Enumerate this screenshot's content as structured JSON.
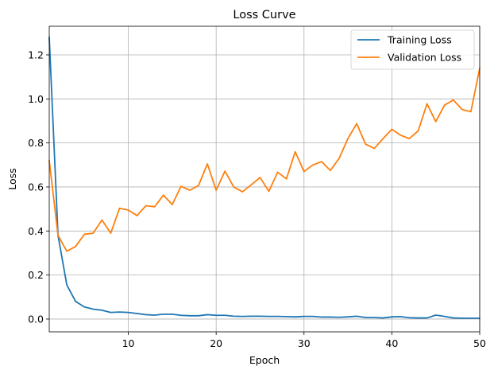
{
  "chart_data": {
    "type": "line",
    "title": "Loss Curve",
    "xlabel": "Epoch",
    "ylabel": "Loss",
    "xlim": [
      1,
      50
    ],
    "ylim": [
      -0.058,
      1.33
    ],
    "xticks": [
      10,
      20,
      30,
      40,
      50
    ],
    "yticks": [
      0.0,
      0.2,
      0.4,
      0.6,
      0.8,
      1.0,
      1.2
    ],
    "ytick_labels": [
      "0.0",
      "0.2",
      "0.4",
      "0.6",
      "0.8",
      "1.0",
      "1.2"
    ],
    "grid": true,
    "legend_position": "top-right",
    "x": [
      1,
      2,
      3,
      4,
      5,
      6,
      7,
      8,
      9,
      10,
      11,
      12,
      13,
      14,
      15,
      16,
      17,
      18,
      19,
      20,
      21,
      22,
      23,
      24,
      25,
      26,
      27,
      28,
      29,
      30,
      31,
      32,
      33,
      34,
      35,
      36,
      37,
      38,
      39,
      40,
      41,
      42,
      43,
      44,
      45,
      46,
      47,
      48,
      49,
      50
    ],
    "series": [
      {
        "name": "Training Loss",
        "color": "#1f77b4",
        "values": [
          1.28,
          0.38,
          0.155,
          0.08,
          0.055,
          0.045,
          0.04,
          0.03,
          0.032,
          0.03,
          0.025,
          0.02,
          0.018,
          0.022,
          0.022,
          0.017,
          0.015,
          0.015,
          0.02,
          0.017,
          0.017,
          0.013,
          0.012,
          0.013,
          0.013,
          0.012,
          0.012,
          0.011,
          0.01,
          0.012,
          0.012,
          0.009,
          0.009,
          0.008,
          0.01,
          0.013,
          0.007,
          0.007,
          0.005,
          0.01,
          0.011,
          0.006,
          0.005,
          0.005,
          0.018,
          0.012,
          0.005,
          0.004,
          0.004,
          0.004
        ]
      },
      {
        "name": "Validation Loss",
        "color": "#ff7f0e",
        "values": [
          0.72,
          0.38,
          0.308,
          0.33,
          0.385,
          0.39,
          0.45,
          0.39,
          0.503,
          0.495,
          0.47,
          0.515,
          0.51,
          0.563,
          0.52,
          0.603,
          0.585,
          0.607,
          0.705,
          0.585,
          0.672,
          0.6,
          0.578,
          0.61,
          0.643,
          0.58,
          0.667,
          0.637,
          0.76,
          0.67,
          0.7,
          0.715,
          0.675,
          0.73,
          0.82,
          0.888,
          0.795,
          0.775,
          0.82,
          0.862,
          0.835,
          0.82,
          0.855,
          0.978,
          0.897,
          0.972,
          0.995,
          0.952,
          0.942,
          1.14
        ]
      }
    ]
  }
}
